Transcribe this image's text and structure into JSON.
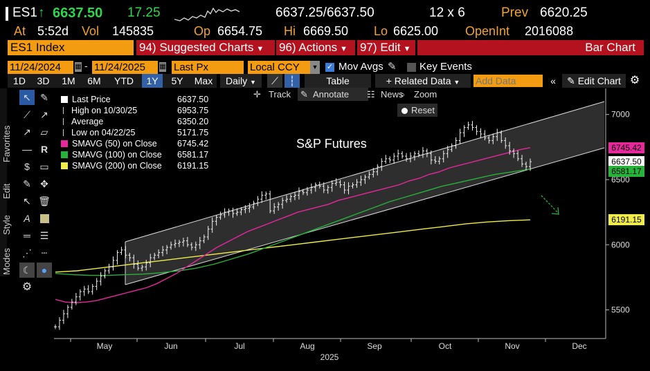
{
  "quote": {
    "ticker": "ES1",
    "arrow": "↑",
    "last": "6637.50",
    "change": "17.25",
    "bid_ask": "6637.25/6637.50",
    "size": "12 x 6",
    "prev_label": "Prev",
    "prev": "6620.25",
    "at_label": "At",
    "time": "5:52d",
    "vol_label": "Vol",
    "vol": "145835",
    "op_label": "Op",
    "open": "6654.75",
    "hi_label": "Hi",
    "high": "6669.50",
    "lo_label": "Lo",
    "low": "6625.00",
    "oi_label": "OpenInt",
    "open_interest": "2016088"
  },
  "menubar": {
    "security": "ES1 Index",
    "suggested_num": "94)",
    "suggested": "Suggested Charts",
    "actions_num": "96)",
    "actions": "Actions",
    "edit_num": "97)",
    "edit": "Edit",
    "chart_type": "Bar Chart"
  },
  "settings": {
    "start_date": "11/24/2024",
    "end_date": "11/24/2025",
    "field": "Last Px",
    "currency": "Local CCY",
    "mov_avgs": "Mov Avgs",
    "key_events": "Key Events"
  },
  "toolbar": {
    "periods": [
      "1D",
      "3D",
      "1M",
      "6M",
      "YTD",
      "1Y",
      "5Y",
      "Max"
    ],
    "selected_period": "1Y",
    "frequency": "Daily",
    "table": "Table",
    "related": "Related Data",
    "add_data_placeholder": "Add Data",
    "edit_chart": "Edit Chart"
  },
  "chart_tools": {
    "track": "Track",
    "annotate": "Annotate",
    "news": "News",
    "zoom": "Zoom",
    "reset": "Reset"
  },
  "side_tabs": [
    "Favorites",
    "Edit",
    "Style",
    "Modes"
  ],
  "icons": {
    "cursor": "pointer-icon",
    "draw": "pen-icon",
    "gear": "gear-icon",
    "trash": "trash-icon"
  },
  "legend": [
    {
      "label": "Last Price",
      "value": "6637.50",
      "color": "#ffffff",
      "kind": "box"
    },
    {
      "label": "High on 10/30/25",
      "value": "6953.75",
      "color": "#ffffff",
      "kind": "line"
    },
    {
      "label": "Average",
      "value": "6350.20",
      "color": "#ffffff",
      "kind": "line"
    },
    {
      "label": "Low on 04/22/25",
      "value": "5171.75",
      "color": "#ffffff",
      "kind": "line"
    },
    {
      "label": "SMAVG (50)  on Close",
      "value": "6745.42",
      "color": "#e6289c",
      "kind": "box"
    },
    {
      "label": "SMAVG (100)  on Close",
      "value": "6581.17",
      "color": "#27b23a",
      "kind": "box"
    },
    {
      "label": "SMAVG (200)  on Close",
      "value": "6191.15",
      "color": "#f0ec4b",
      "kind": "box"
    }
  ],
  "chart_data": {
    "type": "bar",
    "annotation": "S&P Futures",
    "x_labels": [
      "May",
      "Jun",
      "Jul",
      "Aug",
      "Sep",
      "Oct",
      "Nov",
      "Dec"
    ],
    "year_label": "2025",
    "y_ticks": [
      5500,
      6000,
      6500,
      7000
    ],
    "ylim": [
      5280,
      7200
    ],
    "price_labels": [
      {
        "value": "6745.42",
        "color": "#e6289c",
        "price": 6745.42
      },
      {
        "value": "6637.50",
        "color": "#ffffff",
        "price": 6637.5
      },
      {
        "value": "6581.17",
        "color": "#27b23a",
        "price": 6581.17
      },
      {
        "value": "6191.15",
        "color": "#f0ec4b",
        "price": 6191.15
      }
    ],
    "closes": [
      5370,
      5420,
      5470,
      5520,
      5560,
      5600,
      5640,
      5660,
      5640,
      5680,
      5720,
      5760,
      5800,
      5830,
      5880,
      5940,
      5960,
      5920,
      5900,
      5850,
      5820,
      5830,
      5860,
      5900,
      5920,
      5940,
      5960,
      5980,
      6000,
      6010,
      6020,
      6030,
      6000,
      5980,
      6000,
      6030,
      6060,
      6120,
      6180,
      6210,
      6230,
      6250,
      6260,
      6240,
      6250,
      6270,
      6280,
      6290,
      6320,
      6350,
      6380,
      6390,
      6260,
      6290,
      6310,
      6340,
      6350,
      6370,
      6380,
      6410,
      6400,
      6420,
      6440,
      6460,
      6450,
      6420,
      6440,
      6470,
      6480,
      6460,
      6420,
      6450,
      6460,
      6480,
      6500,
      6520,
      6540,
      6560,
      6600,
      6640,
      6660,
      6650,
      6680,
      6700,
      6680,
      6660,
      6680,
      6700,
      6690,
      6720,
      6700,
      6650,
      6640,
      6660,
      6700,
      6730,
      6760,
      6800,
      6860,
      6900,
      6920,
      6900,
      6870,
      6850,
      6820,
      6800,
      6830,
      6860,
      6800,
      6760,
      6720,
      6700,
      6660,
      6620,
      6600,
      6637.5
    ],
    "sma50": [
      5580,
      5560,
      5555,
      5560,
      5570,
      5590,
      5610,
      5630,
      5650,
      5670,
      5700,
      5740,
      5780,
      5830,
      5880,
      5930,
      5980,
      6020,
      6060,
      6100,
      6130,
      6160,
      6190,
      6220,
      6250,
      6270,
      6290,
      6310,
      6340,
      6360,
      6380,
      6400,
      6420,
      6440,
      6460,
      6490,
      6510,
      6540,
      6560,
      6590,
      6610,
      6630,
      6650,
      6670,
      6690,
      6710,
      6730,
      6745.42
    ],
    "sma100": [
      5780,
      5770,
      5765,
      5765,
      5770,
      5775,
      5785,
      5800,
      5820,
      5850,
      5890,
      5930,
      5980,
      6030,
      6080,
      6130,
      6180,
      6230,
      6280,
      6330,
      6370,
      6410,
      6450,
      6480,
      6510,
      6540,
      6560,
      6581.17
    ],
    "sma200": [
      5790,
      5800,
      5820,
      5840,
      5860,
      5880,
      5900,
      5920,
      5940,
      5960,
      5980,
      6000,
      6020,
      6040,
      6060,
      6080,
      6100,
      6120,
      6140,
      6160,
      6175,
      6185,
      6191.15
    ]
  }
}
